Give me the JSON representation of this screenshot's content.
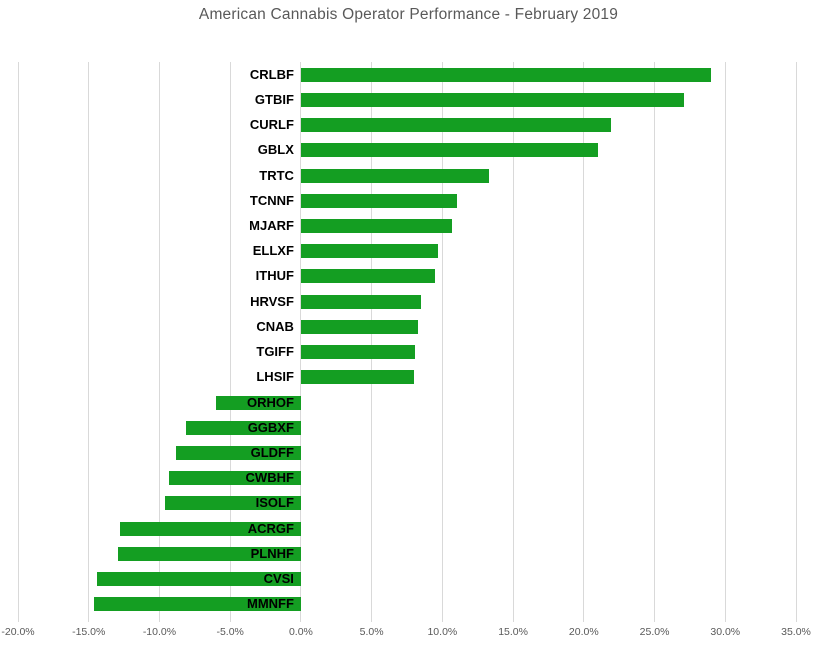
{
  "chart_data": {
    "type": "bar",
    "orientation": "horizontal",
    "title": "American Cannabis Operator Performance - February 2019",
    "categories": [
      "CRLBF",
      "GTBIF",
      "CURLF",
      "GBLX",
      "TRTC",
      "TCNNF",
      "MJARF",
      "ELLXF",
      "ITHUF",
      "HRVSF",
      "CNAB",
      "TGIFF",
      "LHSIF",
      "ORHOF",
      "GGBXF",
      "GLDFF",
      "CWBHF",
      "ISOLF",
      "ACRGF",
      "PLNHF",
      "CVSI",
      "MMNFF"
    ],
    "values": [
      29.0,
      27.1,
      21.9,
      21.0,
      13.3,
      11.0,
      10.7,
      9.7,
      9.5,
      8.5,
      8.3,
      8.1,
      8.0,
      -6.0,
      -8.1,
      -8.8,
      -9.3,
      -9.6,
      -12.8,
      -12.9,
      -14.4,
      -14.6
    ],
    "value_unit": "%",
    "xlabel": "",
    "ylabel": "",
    "xlim": [
      -20,
      35
    ],
    "xticks": [
      -20,
      -15,
      -10,
      -5,
      0,
      5,
      10,
      15,
      20,
      25,
      30,
      35
    ],
    "xticklabels": [
      "-20.0%",
      "-15.0%",
      "-10.0%",
      "-5.0%",
      "0.0%",
      "5.0%",
      "10.0%",
      "15.0%",
      "20.0%",
      "25.0%",
      "30.0%",
      "35.0%"
    ],
    "grid": "vertical-only",
    "legend": "none",
    "category_label_position": "at-zero-axis",
    "colors": {
      "bar": "#149e22",
      "gridline": "#d9d9d9",
      "title": "#595959",
      "axis_label": "#595959",
      "category_label": "#000000",
      "background": "#ffffff"
    }
  }
}
